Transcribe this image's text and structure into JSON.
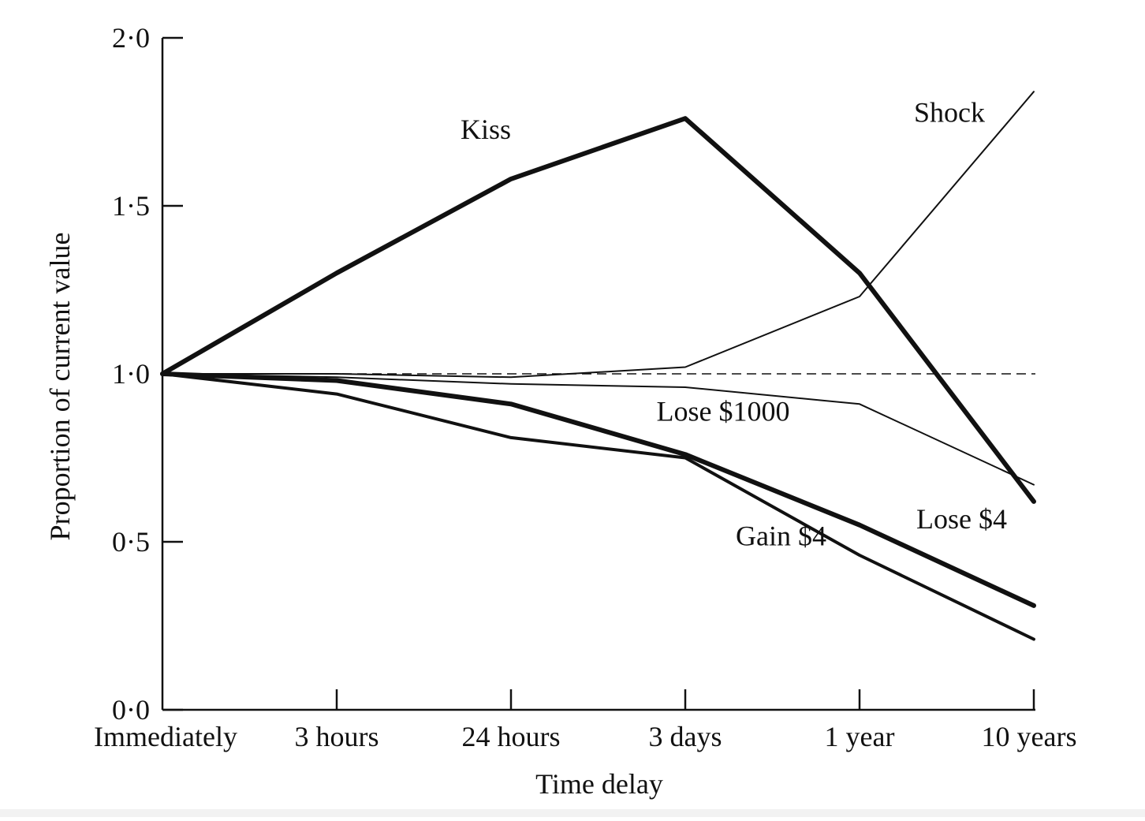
{
  "colors": {
    "ink": "#111111",
    "background": "#ffffff"
  },
  "chart_data": {
    "type": "line",
    "title": "",
    "xlabel": "Time delay",
    "ylabel": "Proportion of current value",
    "categories": [
      "Immediately",
      "3 hours",
      "24 hours",
      "3 days",
      "1 year",
      "10 years"
    ],
    "yticks": [
      {
        "value": 0.0,
        "label": "0·0"
      },
      {
        "value": 0.5,
        "label": "0·5"
      },
      {
        "value": 1.0,
        "label": "1·0"
      },
      {
        "value": 1.5,
        "label": "1·5"
      },
      {
        "value": 2.0,
        "label": "2·0"
      }
    ],
    "ylim": [
      0,
      2.0
    ],
    "grid": false,
    "reference_line": {
      "value": 1.0,
      "style": "dashed"
    },
    "series": [
      {
        "name": "Kiss",
        "weight": "heavy",
        "values": [
          1.0,
          1.3,
          1.58,
          1.76,
          1.3,
          0.62
        ]
      },
      {
        "name": "Shock",
        "weight": "light",
        "values": [
          1.0,
          1.0,
          0.99,
          1.02,
          1.23,
          1.84
        ]
      },
      {
        "name": "Lose $1000",
        "weight": "light",
        "values": [
          1.0,
          0.99,
          0.97,
          0.96,
          0.91,
          0.67
        ]
      },
      {
        "name": "Lose $4",
        "weight": "heavy",
        "values": [
          1.0,
          0.98,
          0.91,
          0.76,
          0.55,
          0.31
        ]
      },
      {
        "name": "Gain $4",
        "weight": "medium",
        "values": [
          1.0,
          0.94,
          0.81,
          0.75,
          0.46,
          0.21
        ]
      }
    ]
  }
}
